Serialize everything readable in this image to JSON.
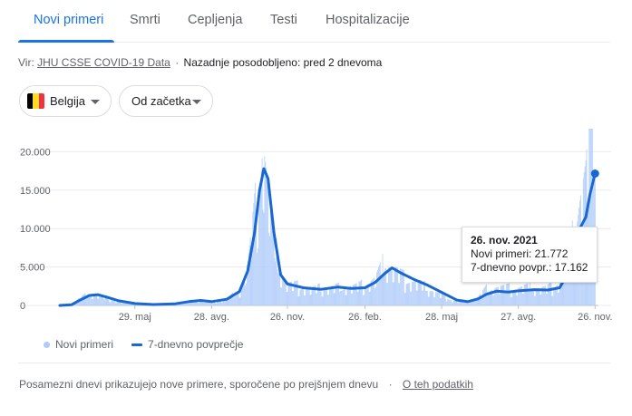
{
  "tabs": [
    {
      "label": "Novi primeri",
      "active": true
    },
    {
      "label": "Smrti",
      "active": false
    },
    {
      "label": "Cepljenja",
      "active": false
    },
    {
      "label": "Testi",
      "active": false
    },
    {
      "label": "Hospitalizacije",
      "active": false
    }
  ],
  "source": {
    "prefix": "Vir: ",
    "link": "JHU CSSE COVID-19 Data",
    "separator": "·",
    "updated": "Nazadnje posodobljeno: pred 2 dnevoma"
  },
  "filters": {
    "country": "Belgija",
    "country_flag_colors": [
      "#000000",
      "#FDDA24",
      "#EF3340"
    ],
    "range": "Od začetka"
  },
  "colors": {
    "accent": "#1a73e8",
    "bar": "#aecbfa",
    "avg_line": "#1967d2"
  },
  "chart_data": {
    "type": "bar",
    "y_ticks": [
      "20.000",
      "15.000",
      "10.000",
      "5.000",
      "0"
    ],
    "ylim": [
      0,
      23000
    ],
    "x_ticks": [
      "29. maj",
      "28. avg.",
      "26. nov.",
      "26. feb.",
      "28. maj",
      "27. avg.",
      "26. nov."
    ],
    "x_tick_dates": [
      "2020-05-29",
      "2020-08-28",
      "2020-11-26",
      "2021-02-26",
      "2021-05-28",
      "2021-08-27",
      "2021-11-26"
    ],
    "xlim": [
      "2020-03-01",
      "2021-11-30"
    ],
    "grid": true,
    "series": [
      {
        "name": "Novi primeri",
        "kind": "bars",
        "points": [
          [
            "2020-03-01",
            0
          ],
          [
            "2020-03-15",
            300
          ],
          [
            "2020-04-01",
            1400
          ],
          [
            "2020-04-10",
            1600
          ],
          [
            "2020-04-20",
            1300
          ],
          [
            "2020-05-01",
            800
          ],
          [
            "2020-05-15",
            400
          ],
          [
            "2020-06-01",
            200
          ],
          [
            "2020-07-01",
            150
          ],
          [
            "2020-07-20",
            300
          ],
          [
            "2020-08-05",
            650
          ],
          [
            "2020-08-20",
            550
          ],
          [
            "2020-09-01",
            500
          ],
          [
            "2020-09-15",
            900
          ],
          [
            "2020-10-01",
            2000
          ],
          [
            "2020-10-10",
            5500
          ],
          [
            "2020-10-18",
            12000
          ],
          [
            "2020-10-24",
            17500
          ],
          [
            "2020-10-28",
            22700
          ],
          [
            "2020-11-01",
            18000
          ],
          [
            "2020-11-08",
            11000
          ],
          [
            "2020-11-15",
            5500
          ],
          [
            "2020-11-25",
            3000
          ],
          [
            "2020-12-10",
            2600
          ],
          [
            "2020-12-25",
            2200
          ],
          [
            "2021-01-10",
            2400
          ],
          [
            "2021-02-01",
            2500
          ],
          [
            "2021-02-20",
            2600
          ],
          [
            "2021-03-10",
            3500
          ],
          [
            "2021-03-22",
            6000
          ],
          [
            "2021-03-30",
            5200
          ],
          [
            "2021-04-15",
            3500
          ],
          [
            "2021-05-01",
            3000
          ],
          [
            "2021-05-20",
            1800
          ],
          [
            "2021-06-10",
            700
          ],
          [
            "2021-06-25",
            500
          ],
          [
            "2021-07-10",
            1100
          ],
          [
            "2021-07-20",
            2300
          ],
          [
            "2021-08-01",
            2500
          ],
          [
            "2021-08-20",
            2300
          ],
          [
            "2021-09-10",
            2500
          ],
          [
            "2021-09-30",
            2300
          ],
          [
            "2021-10-15",
            3200
          ],
          [
            "2021-10-25",
            6500
          ],
          [
            "2021-11-01",
            10000
          ],
          [
            "2021-11-08",
            15000
          ],
          [
            "2021-11-15",
            18000
          ],
          [
            "2021-11-20",
            23000
          ],
          [
            "2021-11-26",
            21772
          ]
        ]
      },
      {
        "name": "7-dnevno povprečje",
        "kind": "line",
        "points": [
          [
            "2020-03-01",
            0
          ],
          [
            "2020-03-15",
            100
          ],
          [
            "2020-03-25",
            700
          ],
          [
            "2020-04-05",
            1300
          ],
          [
            "2020-04-15",
            1400
          ],
          [
            "2020-04-25",
            1100
          ],
          [
            "2020-05-10",
            600
          ],
          [
            "2020-05-29",
            250
          ],
          [
            "2020-06-20",
            120
          ],
          [
            "2020-07-15",
            200
          ],
          [
            "2020-08-01",
            500
          ],
          [
            "2020-08-15",
            650
          ],
          [
            "2020-08-28",
            500
          ],
          [
            "2020-09-15",
            800
          ],
          [
            "2020-09-30",
            1800
          ],
          [
            "2020-10-10",
            4500
          ],
          [
            "2020-10-18",
            9500
          ],
          [
            "2020-10-24",
            15000
          ],
          [
            "2020-10-29",
            17800
          ],
          [
            "2020-11-03",
            16500
          ],
          [
            "2020-11-10",
            9500
          ],
          [
            "2020-11-18",
            4000
          ],
          [
            "2020-11-26",
            2800
          ],
          [
            "2020-12-15",
            2300
          ],
          [
            "2021-01-05",
            2100
          ],
          [
            "2021-01-25",
            2400
          ],
          [
            "2021-02-10",
            2200
          ],
          [
            "2021-02-26",
            2300
          ],
          [
            "2021-03-10",
            3000
          ],
          [
            "2021-03-22",
            4200
          ],
          [
            "2021-03-30",
            4900
          ],
          [
            "2021-04-10",
            4200
          ],
          [
            "2021-04-25",
            3400
          ],
          [
            "2021-05-10",
            2700
          ],
          [
            "2021-05-28",
            1700
          ],
          [
            "2021-06-15",
            700
          ],
          [
            "2021-06-28",
            500
          ],
          [
            "2021-07-10",
            850
          ],
          [
            "2021-07-20",
            1450
          ],
          [
            "2021-08-01",
            1850
          ],
          [
            "2021-08-15",
            1750
          ],
          [
            "2021-08-27",
            1900
          ],
          [
            "2021-09-15",
            2050
          ],
          [
            "2021-10-01",
            2000
          ],
          [
            "2021-10-15",
            2300
          ],
          [
            "2021-10-25",
            4200
          ],
          [
            "2021-11-01",
            7000
          ],
          [
            "2021-11-08",
            10000
          ],
          [
            "2021-11-15",
            11500
          ],
          [
            "2021-11-20",
            14500
          ],
          [
            "2021-11-26",
            17162
          ]
        ]
      }
    ],
    "tooltip": {
      "date": "26. nov. 2021",
      "cases": "Novi primeri: 21.772",
      "avg": "7-dnevno povpr.: 17.162"
    }
  },
  "legend": {
    "bars": "Novi primeri",
    "line": "7-dnevno povprečje"
  },
  "footer": {
    "note": "Posamezni dnevi prikazujejo nove primere, sporočene po prejšnjem dnevu",
    "separator": "·",
    "link": "O teh podatkih"
  }
}
